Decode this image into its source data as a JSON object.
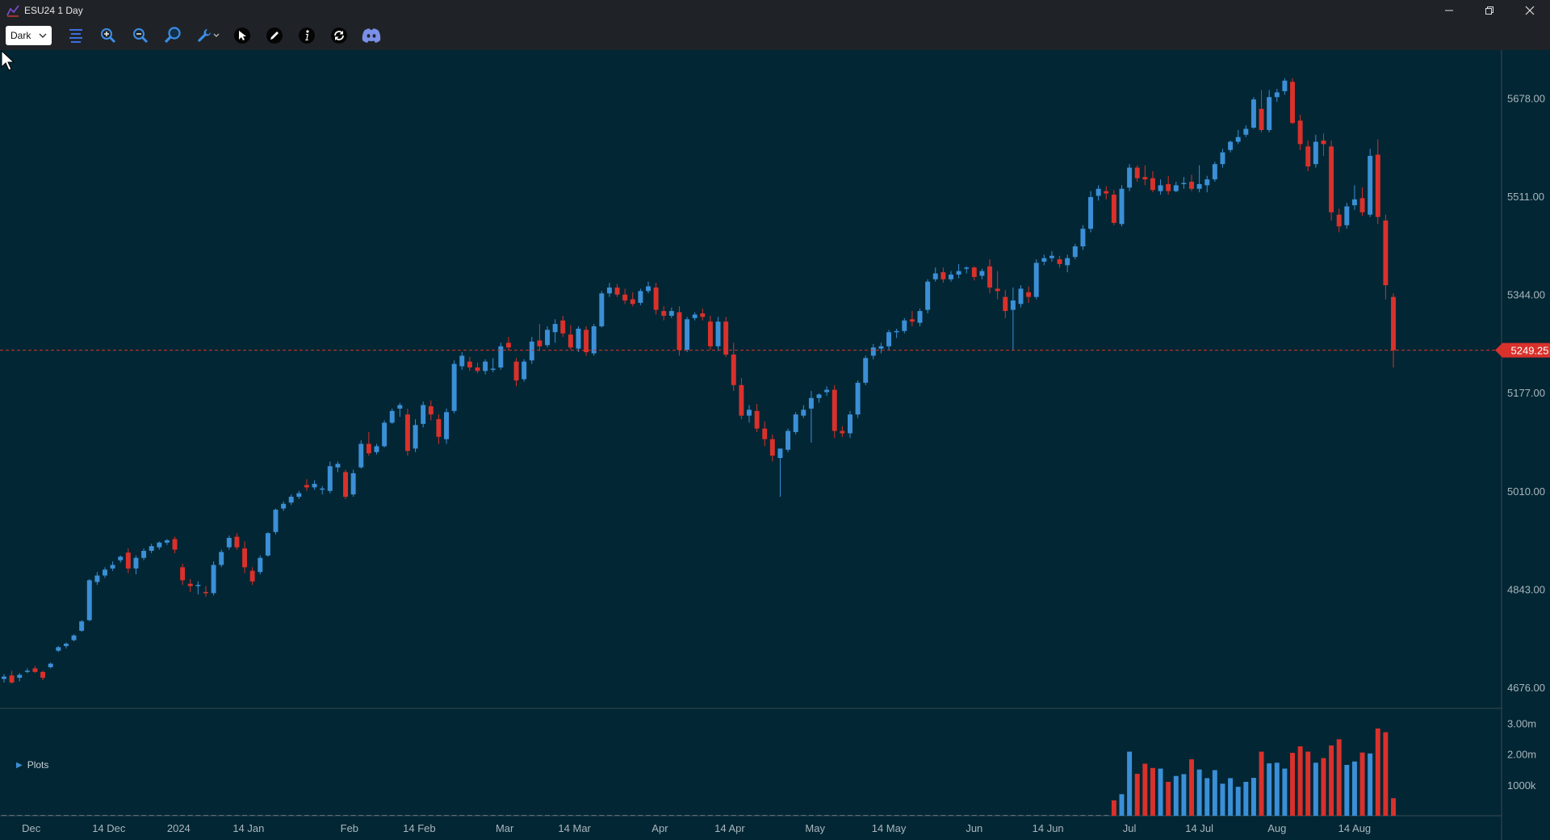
{
  "window": {
    "title": "ESU24 1 Day"
  },
  "toolbar": {
    "theme_value": "Dark",
    "buttons": [
      "menu-icon",
      "zoom-in-icon",
      "zoom-out-icon",
      "magnifier-icon",
      "wrench-icon",
      "pointer-icon",
      "pencil-icon",
      "info-icon",
      "refresh-icon",
      "discord-icon"
    ]
  },
  "colors": {
    "background": "#022634",
    "up": "#3b8fd6",
    "down": "#d9312b",
    "price_tag": "#d9312b",
    "grid_divider": "#3a4a52"
  },
  "panels": {
    "plots_label": "Plots"
  },
  "price_axis": {
    "ticks": [
      "5678.00",
      "5511.00",
      "5344.00",
      "5177.00",
      "5010.00",
      "4843.00",
      "4676.00"
    ],
    "current_price": "5249.25"
  },
  "volume_axis": {
    "ticks": [
      "3.00m",
      "2.00m",
      "1000k"
    ]
  },
  "time_axis": {
    "ticks": [
      "Dec",
      "14 Dec",
      "2024",
      "14 Jan",
      "Feb",
      "14 Feb",
      "Mar",
      "14 Mar",
      "Apr",
      "14 Apr",
      "May",
      "14 May",
      "Jun",
      "14 Jun",
      "Jul",
      "14 Jul",
      "Aug",
      "14 Aug"
    ]
  },
  "chart_data": {
    "type": "candlestick",
    "symbol": "ESU24",
    "interval": "1 Day",
    "price_range": [
      4640,
      5760
    ],
    "volume_range": [
      0,
      3300000
    ],
    "candles": [
      [
        4690,
        4698,
        4684,
        4694,
        0
      ],
      [
        4696,
        4704,
        4682,
        4684,
        0
      ],
      [
        4692,
        4700,
        4686,
        4697,
        0
      ],
      [
        4704,
        4708,
        4700,
        4704,
        0
      ],
      [
        4708,
        4712,
        4700,
        4702,
        0
      ],
      [
        4702,
        4704,
        4688,
        4692,
        0
      ],
      [
        4710,
        4718,
        4708,
        4716,
        0
      ],
      [
        4738,
        4746,
        4736,
        4744,
        0
      ],
      [
        4746,
        4752,
        4742,
        4750,
        0
      ],
      [
        4756,
        4766,
        4754,
        4764,
        0
      ],
      [
        4772,
        4790,
        4770,
        4788,
        0
      ],
      [
        4790,
        4860,
        4788,
        4858,
        0
      ],
      [
        4855,
        4872,
        4850,
        4866,
        0
      ],
      [
        4866,
        4880,
        4862,
        4876,
        0
      ],
      [
        4878,
        4890,
        4874,
        4884,
        0
      ],
      [
        4892,
        4900,
        4888,
        4898,
        0
      ],
      [
        4905,
        4912,
        4870,
        4878,
        0
      ],
      [
        4878,
        4900,
        4868,
        4896,
        0
      ],
      [
        4896,
        4912,
        4892,
        4908,
        0
      ],
      [
        4908,
        4920,
        4904,
        4916,
        0
      ],
      [
        4914,
        4924,
        4910,
        4922,
        0
      ],
      [
        4922,
        4928,
        4918,
        4926,
        0
      ],
      [
        4928,
        4932,
        4904,
        4910,
        0
      ],
      [
        4880,
        4886,
        4850,
        4858,
        0
      ],
      [
        4852,
        4860,
        4838,
        4848,
        0
      ],
      [
        4848,
        4856,
        4834,
        4850,
        0
      ],
      [
        4838,
        4848,
        4830,
        4836,
        0
      ],
      [
        4836,
        4890,
        4832,
        4884,
        0
      ],
      [
        4884,
        4910,
        4880,
        4906,
        0
      ],
      [
        4914,
        4934,
        4910,
        4930,
        0
      ],
      [
        4932,
        4938,
        4910,
        4914,
        0
      ],
      [
        4912,
        4924,
        4870,
        4880,
        0
      ],
      [
        4874,
        4880,
        4850,
        4856,
        0
      ],
      [
        4872,
        4900,
        4868,
        4896,
        0
      ],
      [
        4900,
        4940,
        4898,
        4938,
        0
      ],
      [
        4940,
        4980,
        4936,
        4978,
        0
      ],
      [
        4980,
        4992,
        4976,
        4988,
        0
      ],
      [
        4990,
        5004,
        4986,
        5000,
        0
      ],
      [
        5000,
        5010,
        4996,
        5006,
        0
      ],
      [
        5020,
        5030,
        5010,
        5016,
        0
      ],
      [
        5016,
        5028,
        5012,
        5022,
        0
      ],
      [
        5012,
        5018,
        5004,
        5014,
        0
      ],
      [
        5010,
        5060,
        5006,
        5052,
        0
      ],
      [
        5050,
        5060,
        5042,
        5056,
        0
      ],
      [
        5042,
        5046,
        4996,
        5000,
        0
      ],
      [
        5004,
        5046,
        5000,
        5040,
        0
      ],
      [
        5050,
        5096,
        5048,
        5090,
        0
      ],
      [
        5090,
        5110,
        5070,
        5074,
        0
      ],
      [
        5076,
        5090,
        5072,
        5086,
        0
      ],
      [
        5086,
        5130,
        5084,
        5126,
        0
      ],
      [
        5126,
        5150,
        5124,
        5146,
        0
      ],
      [
        5150,
        5160,
        5136,
        5156,
        0
      ],
      [
        5140,
        5150,
        5070,
        5078,
        0
      ],
      [
        5082,
        5132,
        5076,
        5122,
        0
      ],
      [
        5124,
        5162,
        5118,
        5156,
        0
      ],
      [
        5154,
        5164,
        5130,
        5140,
        0
      ],
      [
        5132,
        5140,
        5090,
        5102,
        0
      ],
      [
        5098,
        5150,
        5090,
        5144,
        0
      ],
      [
        5146,
        5232,
        5142,
        5226,
        0
      ],
      [
        5222,
        5246,
        5216,
        5240,
        0
      ],
      [
        5230,
        5238,
        5214,
        5220,
        0
      ],
      [
        5220,
        5228,
        5210,
        5214,
        0
      ],
      [
        5214,
        5234,
        5208,
        5230,
        0
      ],
      [
        5216,
        5236,
        5212,
        5218,
        0
      ],
      [
        5220,
        5262,
        5216,
        5256,
        0
      ],
      [
        5262,
        5272,
        5248,
        5254,
        0
      ],
      [
        5230,
        5236,
        5188,
        5198,
        0
      ],
      [
        5200,
        5234,
        5196,
        5230,
        0
      ],
      [
        5232,
        5272,
        5226,
        5264,
        0
      ],
      [
        5266,
        5294,
        5248,
        5256,
        0
      ],
      [
        5258,
        5290,
        5254,
        5284,
        0
      ],
      [
        5280,
        5302,
        5262,
        5294,
        0
      ],
      [
        5300,
        5308,
        5272,
        5278,
        0
      ],
      [
        5276,
        5292,
        5250,
        5254,
        0
      ],
      [
        5252,
        5290,
        5246,
        5286,
        0
      ],
      [
        5284,
        5290,
        5240,
        5246,
        0
      ],
      [
        5244,
        5294,
        5240,
        5290,
        0
      ],
      [
        5290,
        5350,
        5288,
        5346,
        0
      ],
      [
        5346,
        5364,
        5340,
        5356,
        0
      ],
      [
        5356,
        5362,
        5340,
        5344,
        0
      ],
      [
        5344,
        5354,
        5328,
        5334,
        0
      ],
      [
        5336,
        5348,
        5324,
        5328,
        0
      ],
      [
        5330,
        5354,
        5326,
        5350,
        0
      ],
      [
        5350,
        5366,
        5346,
        5358,
        0
      ],
      [
        5356,
        5364,
        5310,
        5318,
        0
      ],
      [
        5316,
        5324,
        5300,
        5308,
        0
      ],
      [
        5308,
        5322,
        5304,
        5316,
        0
      ],
      [
        5314,
        5324,
        5240,
        5250,
        0
      ],
      [
        5250,
        5306,
        5246,
        5302,
        0
      ],
      [
        5304,
        5314,
        5300,
        5310,
        0
      ],
      [
        5312,
        5320,
        5300,
        5306,
        0
      ],
      [
        5298,
        5308,
        5250,
        5256,
        0
      ],
      [
        5256,
        5306,
        5248,
        5298,
        0
      ],
      [
        5298,
        5306,
        5238,
        5242,
        0
      ],
      [
        5242,
        5262,
        5180,
        5190,
        0
      ],
      [
        5190,
        5202,
        5132,
        5138,
        0
      ],
      [
        5138,
        5156,
        5126,
        5148,
        0
      ],
      [
        5146,
        5158,
        5110,
        5116,
        0
      ],
      [
        5116,
        5128,
        5086,
        5098,
        0
      ],
      [
        5098,
        5106,
        5060,
        5070,
        0
      ],
      [
        5066,
        5080,
        5000,
        5082,
        0
      ],
      [
        5080,
        5116,
        5076,
        5112,
        0
      ],
      [
        5110,
        5144,
        5106,
        5140,
        0
      ],
      [
        5138,
        5156,
        5134,
        5148,
        0
      ],
      [
        5150,
        5180,
        5092,
        5168,
        0
      ],
      [
        5168,
        5176,
        5160,
        5174,
        0
      ],
      [
        5178,
        5188,
        5172,
        5182,
        0
      ],
      [
        5182,
        5190,
        5100,
        5112,
        0
      ],
      [
        5112,
        5120,
        5102,
        5108,
        0
      ],
      [
        5108,
        5146,
        5100,
        5140,
        0
      ],
      [
        5140,
        5198,
        5134,
        5194,
        0
      ],
      [
        5194,
        5240,
        5190,
        5236,
        0
      ],
      [
        5240,
        5260,
        5234,
        5254,
        0
      ],
      [
        5252,
        5262,
        5244,
        5256,
        0
      ],
      [
        5256,
        5284,
        5250,
        5280,
        0
      ],
      [
        5280,
        5286,
        5270,
        5282,
        0
      ],
      [
        5282,
        5304,
        5278,
        5300,
        0
      ],
      [
        5302,
        5316,
        5290,
        5298,
        0
      ],
      [
        5296,
        5320,
        5290,
        5316,
        0
      ],
      [
        5318,
        5370,
        5312,
        5366,
        0
      ],
      [
        5370,
        5390,
        5366,
        5380,
        0
      ],
      [
        5382,
        5390,
        5364,
        5370,
        0
      ],
      [
        5370,
        5384,
        5366,
        5378,
        0
      ],
      [
        5378,
        5396,
        5372,
        5384,
        0
      ],
      [
        5388,
        5392,
        5380,
        5390,
        0
      ],
      [
        5390,
        5392,
        5368,
        5374,
        0
      ],
      [
        5376,
        5388,
        5370,
        5384,
        0
      ],
      [
        5392,
        5404,
        5346,
        5356,
        0
      ],
      [
        5354,
        5384,
        5336,
        5350,
        0
      ],
      [
        5340,
        5352,
        5304,
        5316,
        0
      ],
      [
        5318,
        5356,
        5250,
        5334,
        0
      ],
      [
        5328,
        5360,
        5322,
        5354,
        0
      ],
      [
        5348,
        5358,
        5330,
        5340,
        0
      ],
      [
        5340,
        5404,
        5336,
        5398,
        0
      ],
      [
        5400,
        5412,
        5394,
        5406,
        0
      ],
      [
        5406,
        5418,
        5400,
        5410,
        0
      ],
      [
        5404,
        5410,
        5390,
        5396,
        0
      ],
      [
        5394,
        5412,
        5382,
        5406,
        0
      ],
      [
        5408,
        5430,
        5404,
        5426,
        0
      ],
      [
        5426,
        5462,
        5420,
        5456,
        0
      ],
      [
        5456,
        5520,
        5450,
        5510,
        0
      ],
      [
        5512,
        5530,
        5504,
        5524,
        0
      ],
      [
        5520,
        5528,
        5506,
        5516,
        0
      ],
      [
        5514,
        5522,
        5462,
        5466,
        500000
      ],
      [
        5464,
        5530,
        5460,
        5524,
        700000
      ],
      [
        5526,
        5566,
        5520,
        5560,
        2080000
      ],
      [
        5560,
        5564,
        5536,
        5542,
        1360000
      ],
      [
        5544,
        5564,
        5530,
        5540,
        1690000
      ],
      [
        5542,
        5554,
        5518,
        5522,
        1550000
      ],
      [
        5520,
        5540,
        5514,
        5530,
        1530000
      ],
      [
        5532,
        5546,
        5514,
        5520,
        1100000
      ],
      [
        5520,
        5536,
        5518,
        5530,
        1290000
      ],
      [
        5532,
        5544,
        5524,
        5534,
        1350000
      ],
      [
        5536,
        5548,
        5520,
        5524,
        1830000
      ],
      [
        5524,
        5564,
        5518,
        5532,
        1500000
      ],
      [
        5530,
        5546,
        5518,
        5540,
        1220000
      ],
      [
        5540,
        5570,
        5536,
        5566,
        1480000
      ],
      [
        5566,
        5592,
        5560,
        5586,
        1040000
      ],
      [
        5590,
        5606,
        5586,
        5604,
        1220000
      ],
      [
        5604,
        5624,
        5600,
        5612,
        940000
      ],
      [
        5616,
        5632,
        5612,
        5626,
        1100000
      ],
      [
        5628,
        5680,
        5626,
        5676,
        1230000
      ],
      [
        5660,
        5692,
        5620,
        5624,
        2080000
      ],
      [
        5624,
        5692,
        5620,
        5680,
        1700000
      ],
      [
        5680,
        5694,
        5672,
        5688,
        1720000
      ],
      [
        5690,
        5712,
        5684,
        5708,
        1530000
      ],
      [
        5706,
        5712,
        5634,
        5636,
        2040000
      ],
      [
        5640,
        5650,
        5590,
        5600,
        2250000
      ],
      [
        5596,
        5606,
        5554,
        5562,
        2080000
      ],
      [
        5566,
        5616,
        5560,
        5604,
        1720000
      ],
      [
        5606,
        5618,
        5580,
        5600,
        1870000
      ],
      [
        5596,
        5606,
        5470,
        5484,
        2280000
      ],
      [
        5480,
        5490,
        5450,
        5460,
        2480000
      ],
      [
        5462,
        5500,
        5456,
        5494,
        1650000
      ],
      [
        5496,
        5530,
        5488,
        5506,
        1760000
      ],
      [
        5508,
        5526,
        5478,
        5484,
        2050000
      ],
      [
        5480,
        5592,
        5476,
        5580,
        2020000
      ],
      [
        5582,
        5608,
        5464,
        5476,
        2830000
      ],
      [
        5470,
        5480,
        5336,
        5360,
        2710000
      ],
      [
        5340,
        5346,
        5220,
        5249.25,
        570000
      ]
    ]
  }
}
